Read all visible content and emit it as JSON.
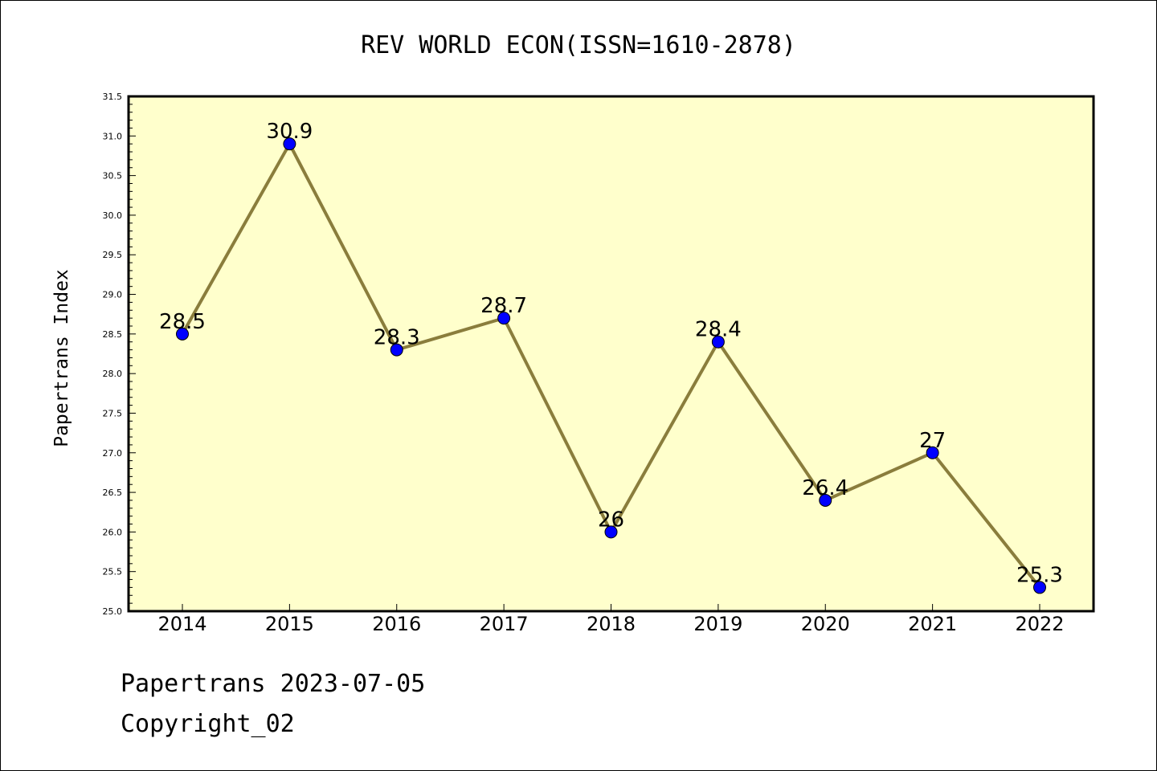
{
  "chart_data": {
    "type": "line",
    "title": "REV WORLD ECON(ISSN=1610-2878)",
    "xlabel": "",
    "ylabel": "Papertrans Index",
    "categories": [
      "2014",
      "2015",
      "2016",
      "2017",
      "2018",
      "2019",
      "2020",
      "2021",
      "2022"
    ],
    "values": [
      28.5,
      30.9,
      28.3,
      28.7,
      26,
      28.4,
      26.4,
      27,
      25.3
    ],
    "data_labels": [
      "28.5",
      "30.9",
      "28.3",
      "28.7",
      "26",
      "28.4",
      "26.4",
      "27",
      "25.3"
    ],
    "ylim": [
      25.0,
      31.5
    ],
    "yticks": [
      "25.0",
      "25.5",
      "26.0",
      "26.5",
      "27.0",
      "27.5",
      "28.0",
      "28.5",
      "29.0",
      "29.5",
      "30.0",
      "30.5",
      "31.0",
      "31.5"
    ],
    "grid": false,
    "legend": "none",
    "colors": {
      "line": "#8a7d3c",
      "marker": "#0000ff",
      "plot_background": "#ffffcc"
    }
  },
  "footer": {
    "line1": "Papertrans 2023-07-05",
    "line2": "Copyright_02"
  }
}
